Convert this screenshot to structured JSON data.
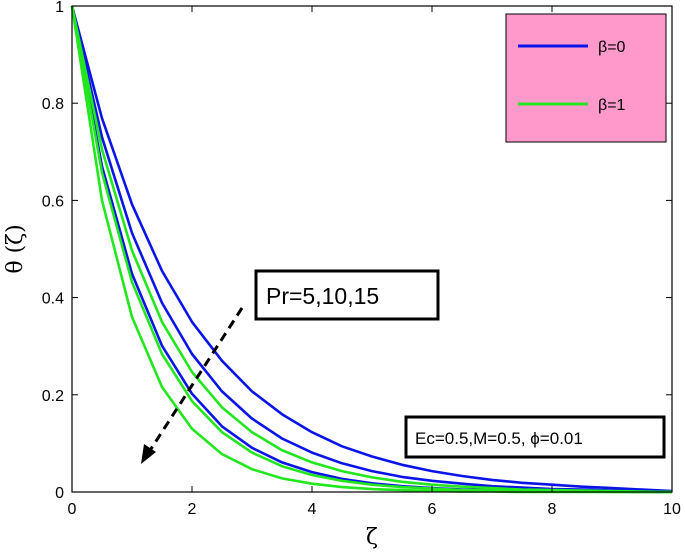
{
  "chart_data": {
    "type": "line",
    "xlabel": "ζ",
    "ylabel": "θ (ζ)",
    "xlim": [
      0,
      10
    ],
    "ylim": [
      0,
      1
    ],
    "x_ticks": [
      0,
      2,
      4,
      6,
      8,
      10
    ],
    "x_tick_labels": [
      "0",
      "2",
      "4",
      "6",
      "8",
      "10"
    ],
    "y_ticks": [
      0,
      0.2,
      0.4,
      0.6,
      0.8,
      1
    ],
    "y_tick_labels": [
      "0",
      "0.2",
      "0.4",
      "0.6",
      "0.8",
      "1"
    ],
    "grid": false,
    "legend_position": "top-right",
    "legend": [
      {
        "label": "β=0",
        "color": "#0a14e6"
      },
      {
        "label": "β=1",
        "color": "#22e61e"
      }
    ],
    "legend_background": "#ff99cc",
    "annotations": {
      "pr_label": "Pr=5,10,15",
      "params_label": "Ec=0.5,M=0.5,  ϕ=0.01"
    },
    "x": [
      0,
      0.5,
      1,
      1.5,
      2,
      2.5,
      3,
      3.5,
      4,
      4.5,
      5,
      5.5,
      6,
      6.5,
      7,
      7.5,
      8,
      8.5,
      9,
      9.5,
      10
    ],
    "series": [
      {
        "group": "β=0",
        "color": "#0a14e6",
        "values": [
          1,
          0.769,
          0.592,
          0.455,
          0.35,
          0.27,
          0.207,
          0.16,
          0.123,
          0.094,
          0.073,
          0.056,
          0.043,
          0.033,
          0.025,
          0.019,
          0.015,
          0.011,
          0.008,
          0.005,
          0.002
        ]
      },
      {
        "group": "β=0",
        "color": "#0a14e6",
        "values": [
          1,
          0.73,
          0.533,
          0.389,
          0.284,
          0.207,
          0.151,
          0.11,
          0.081,
          0.059,
          0.043,
          0.031,
          0.023,
          0.017,
          0.012,
          0.009,
          0.006,
          0.005,
          0.003,
          0.002,
          0.001
        ]
      },
      {
        "group": "β=0",
        "color": "#0a14e6",
        "values": [
          1,
          0.67,
          0.449,
          0.301,
          0.202,
          0.135,
          0.091,
          0.061,
          0.041,
          0.027,
          0.018,
          0.012,
          0.008,
          0.005,
          0.004,
          0.002,
          0.002,
          0.001,
          0.001,
          0.0,
          0.0
        ]
      },
      {
        "group": "β=1",
        "color": "#22e61e",
        "values": [
          1,
          0.705,
          0.497,
          0.35,
          0.247,
          0.174,
          0.123,
          0.086,
          0.061,
          0.043,
          0.03,
          0.021,
          0.015,
          0.011,
          0.008,
          0.005,
          0.004,
          0.003,
          0.002,
          0.001,
          0.0
        ]
      },
      {
        "group": "β=1",
        "color": "#22e61e",
        "values": [
          1,
          0.657,
          0.432,
          0.284,
          0.187,
          0.123,
          0.081,
          0.053,
          0.035,
          0.023,
          0.015,
          0.01,
          0.007,
          0.004,
          0.003,
          0.002,
          0.001,
          0.001,
          0.0,
          0.0,
          0.0
        ]
      },
      {
        "group": "β=1",
        "color": "#22e61e",
        "values": [
          1,
          0.6,
          0.36,
          0.216,
          0.13,
          0.078,
          0.047,
          0.028,
          0.017,
          0.01,
          0.006,
          0.004,
          0.002,
          0.001,
          0.001,
          0.0,
          0.0,
          0.0,
          0.0,
          0.0,
          0.0
        ]
      }
    ]
  }
}
